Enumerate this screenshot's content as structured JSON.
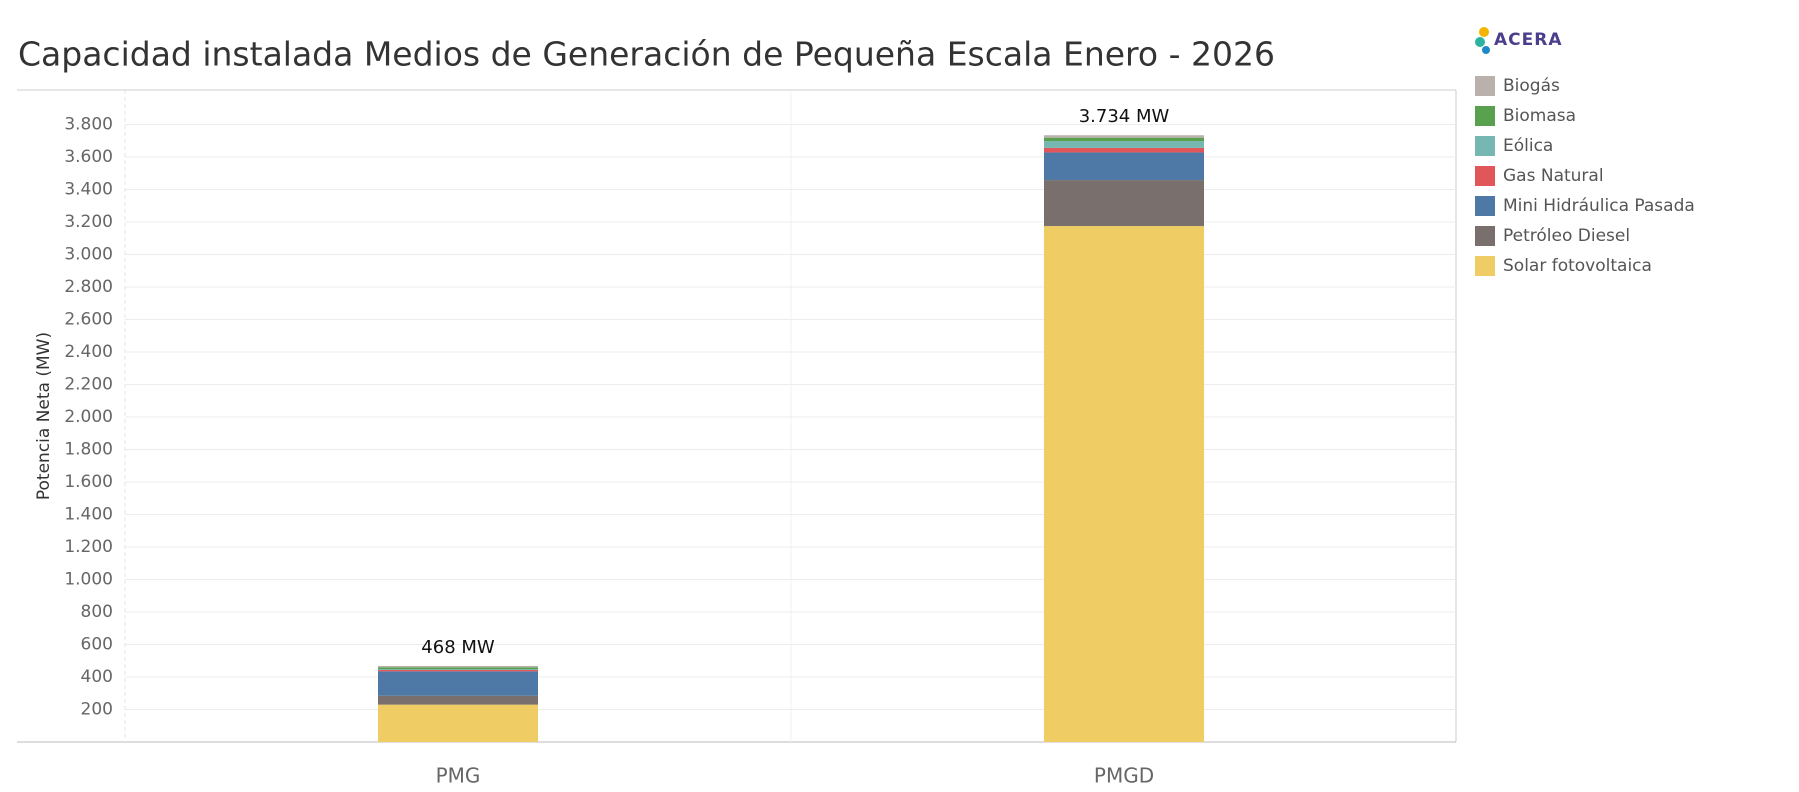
{
  "chart_data": {
    "type": "stacked_bar",
    "title": "Capacidad instalada Medios de Generación de Pequeña Escala Enero - 2026",
    "logo": "ACERA",
    "y_label": "Potencia Neta (MW)",
    "categories": [
      "PMG",
      "PMGD"
    ],
    "series": [
      {
        "name": "Biogás",
        "color": "#bab0ac",
        "values": [
          8,
          15
        ]
      },
      {
        "name": "Biomasa",
        "color": "#59a14f",
        "values": [
          12,
          21
        ]
      },
      {
        "name": "Eólica",
        "color": "#76b7b2",
        "values": [
          5,
          42
        ]
      },
      {
        "name": "Gas Natural",
        "color": "#e15759",
        "values": [
          8,
          28
        ]
      },
      {
        "name": "Mini Hidráulica Pasada",
        "color": "#4e79a7",
        "values": [
          150,
          170
        ]
      },
      {
        "name": "Petróleo Diesel",
        "color": "#79706e",
        "values": [
          55,
          283
        ]
      },
      {
        "name": "Solar fotovoltaica",
        "color": "#f0cd64",
        "values": [
          230,
          3175
        ]
      }
    ],
    "totals": [
      468,
      3734
    ],
    "total_labels": [
      "468 MW",
      "3.734 MW"
    ],
    "ylim": [
      0,
      4000
    ],
    "yticks": [
      200,
      400,
      600,
      800,
      {
        "value": 1000,
        "label": "1.000"
      },
      {
        "value": 1200,
        "label": "1.200"
      },
      {
        "value": 1400,
        "label": "1.400"
      },
      {
        "value": 1600,
        "label": "1.600"
      },
      {
        "value": 1800,
        "label": "1.800"
      },
      {
        "value": 2000,
        "label": "2.000"
      },
      {
        "value": 2200,
        "label": "2.200"
      },
      {
        "value": 2400,
        "label": "2.400"
      },
      {
        "value": 2600,
        "label": "2.600"
      },
      {
        "value": 2800,
        "label": "2.800"
      },
      {
        "value": 3000,
        "label": "3.000"
      },
      {
        "value": 3200,
        "label": "3.200"
      },
      {
        "value": 3400,
        "label": "3.400"
      },
      {
        "value": 3600,
        "label": "3.600"
      },
      {
        "value": 3800,
        "label": "3.800"
      }
    ],
    "grid": true
  }
}
